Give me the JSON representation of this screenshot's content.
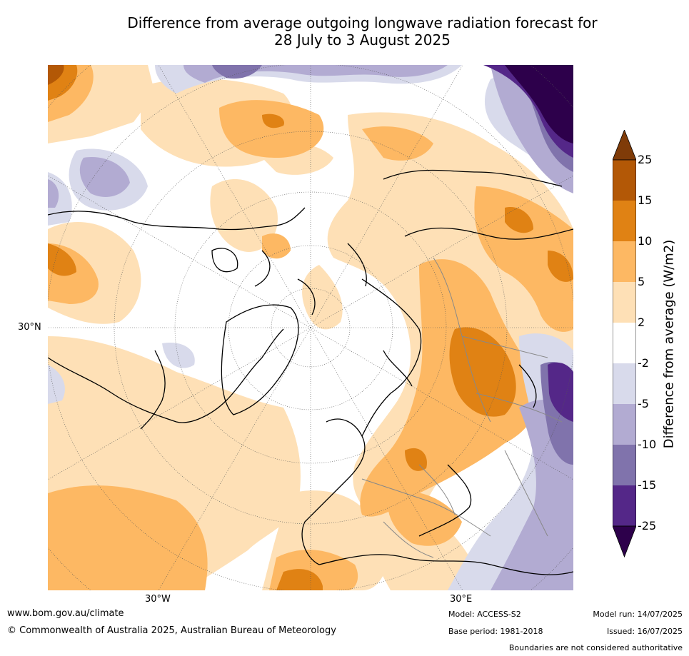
{
  "title_line1": "Difference from average outgoing longwave radiation forecast for",
  "title_line2": "28 July to 3 August 2025",
  "map": {
    "lat_label": "30°N",
    "lon_label_west": "30°W",
    "lon_label_east": "30°E"
  },
  "colorbar": {
    "title": "Difference from average (W/m2)",
    "ticks": [
      "25",
      "15",
      "10",
      "5",
      "2",
      "-2",
      "-5",
      "-10",
      "-15",
      "-25"
    ],
    "colors": {
      "gt25": "#7f3b08",
      "15_25": "#b35806",
      "10_15": "#e08214",
      "5_10": "#fdb863",
      "2_5": "#fee0b6",
      "m2_2": "#ffffff",
      "m5_m2": "#d8daeb",
      "m10_m5": "#b2abd2",
      "m15_m10": "#8073ac",
      "m25_m15": "#542788",
      "lt_m25": "#2d004b"
    }
  },
  "footer": {
    "website": "www.bom.gov.au/climate",
    "copyright": "© Commonwealth of Australia 2025, Australian Bureau of Meteorology",
    "model": "Model: ACCESS-S2",
    "base_period": "Base period: 1981-2018",
    "model_run": "Model run: 14/07/2025",
    "issued": "Issued: 16/07/2025",
    "disclaimer": "Boundaries are not considered authoritative"
  }
}
